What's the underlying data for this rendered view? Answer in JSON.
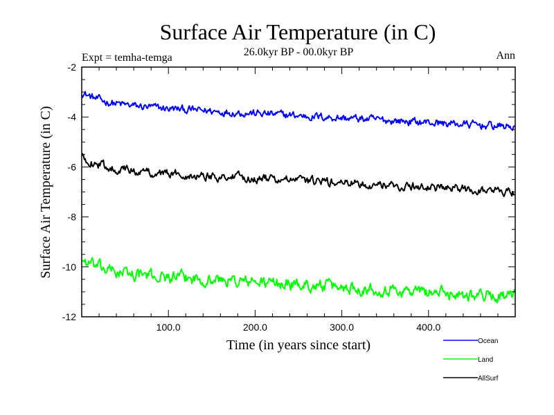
{
  "chart_data": {
    "type": "line",
    "title": "Surface Air Temperature (in C)",
    "subtitle": "26.0kyr BP - 00.0kyr BP",
    "expt_label": "Expt = temha-temga",
    "season_label": "Ann",
    "xlabel": "Time (in years since start)",
    "ylabel": "Surface Air Temperature (in C)",
    "xlim": [
      0,
      500
    ],
    "ylim": [
      -12,
      -2
    ],
    "x_ticks": [
      {
        "value": 100,
        "label": "100.0"
      },
      {
        "value": 200,
        "label": "200.0"
      },
      {
        "value": 300,
        "label": "300.0"
      },
      {
        "value": 400,
        "label": "400.0"
      }
    ],
    "y_ticks": [
      {
        "value": -2,
        "label": "-2"
      },
      {
        "value": -4,
        "label": "-4"
      },
      {
        "value": -6,
        "label": "-6"
      },
      {
        "value": -8,
        "label": "-8"
      },
      {
        "value": -10,
        "label": "-10"
      },
      {
        "value": -12,
        "label": "-12"
      }
    ],
    "legend_position": "bottom-right",
    "series": [
      {
        "name": "Ocean",
        "color": "#0000ff",
        "start": -3.0,
        "end": -4.4,
        "noise": 0.13
      },
      {
        "name": "Land",
        "color": "#00ff00",
        "start": -9.7,
        "end": -11.2,
        "noise": 0.2
      },
      {
        "name": "AllSurf",
        "color": "#000000",
        "start": -5.6,
        "end": -7.0,
        "noise": 0.14
      }
    ]
  }
}
